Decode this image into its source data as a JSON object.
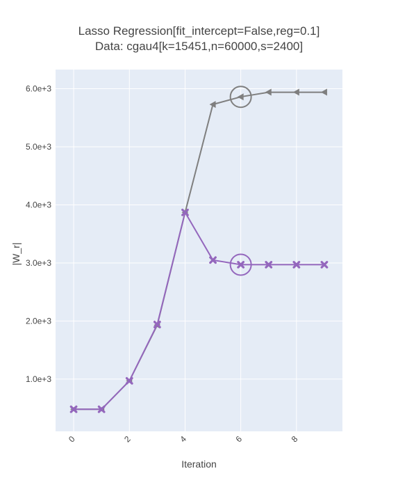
{
  "chart_data": {
    "type": "line",
    "title_lines": [
      "Lasso Regression[fit_intercept=False,reg=0.1]",
      "Data: cgau4[k=15451,n=60000,s=2400]"
    ],
    "xlabel": "Iteration",
    "ylabel": "|W_r|",
    "x": [
      0,
      1,
      2,
      3,
      4,
      5,
      6,
      7,
      8,
      9
    ],
    "xlim": [
      -0.65,
      9.65
    ],
    "ylim": [
      100,
      6330
    ],
    "x_ticks": [
      0,
      2,
      4,
      6,
      8
    ],
    "x_tick_labels": [
      "0",
      "2",
      "4",
      "6",
      "8"
    ],
    "y_ticks": [
      1000,
      2000,
      3000,
      4000,
      5000,
      6000
    ],
    "y_tick_labels": [
      "1.0e+3",
      "2.0e+3",
      "3.0e+3",
      "4.0e+3",
      "5.0e+3",
      "6.0e+3"
    ],
    "grid": true,
    "legend": "none",
    "series": [
      {
        "values": [
          480,
          480,
          970,
          1930,
          3870,
          5730,
          5860,
          5940,
          5940,
          5940
        ],
        "color": "#7f7f7f",
        "marker": "triangle-left",
        "highlight_index": 6
      },
      {
        "values": [
          480,
          480,
          970,
          1940,
          3870,
          3050,
          2970,
          2970,
          2970,
          2970
        ],
        "color": "#9467bd",
        "marker": "x",
        "highlight_index": 6
      }
    ],
    "style": {
      "plot_bg": "#e5ecf6",
      "grid_color": "#ffffff",
      "text_color": "#444444"
    }
  }
}
